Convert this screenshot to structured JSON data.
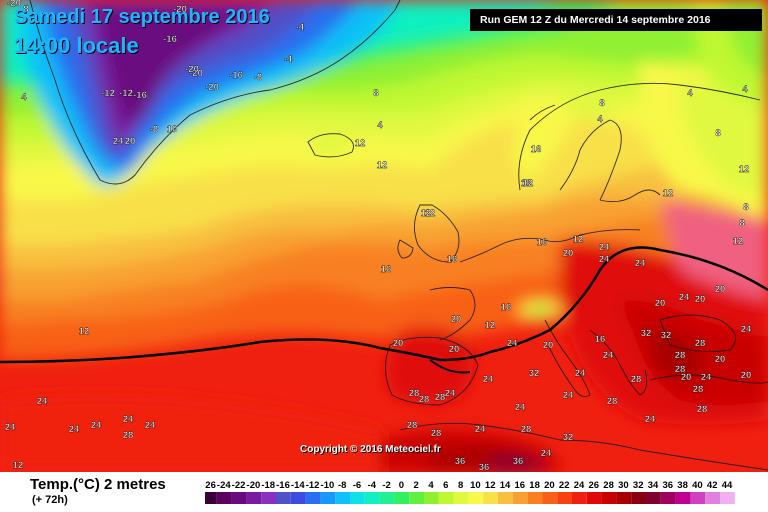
{
  "header": {
    "date_line": "Samedi 17 septembre 2016",
    "time_line": "14:00 locale",
    "run_info": "Run GEM 12 Z du Mercredi 14 septembre 2016"
  },
  "copyright": "Copyright © 2016 Meteociel.fr",
  "legend": {
    "title": "Temp.(°C) 2 metres",
    "subtitle": "(+ 72h)",
    "scale_values": [
      "-26",
      "-24",
      "-22",
      "-20",
      "-18",
      "-16",
      "-14",
      "-12",
      "-10",
      "-8",
      "-6",
      "-4",
      "-2",
      "0",
      "2",
      "4",
      "6",
      "8",
      "10",
      "12",
      "14",
      "16",
      "18",
      "20",
      "22",
      "24",
      "26",
      "28",
      "30",
      "32",
      "34",
      "36",
      "38",
      "40",
      "42",
      "44"
    ],
    "scale_colors": [
      "#3a003a",
      "#5a0060",
      "#6a0a80",
      "#7a1aa0",
      "#8a30c0",
      "#5050c8",
      "#3c4ce0",
      "#2870f0",
      "#1898f8",
      "#10c0f8",
      "#10e0e8",
      "#10f0c0",
      "#20f090",
      "#30f060",
      "#60f040",
      "#90f030",
      "#c0f830",
      "#e0f840",
      "#f8f848",
      "#f8e048",
      "#f8c040",
      "#f8a030",
      "#f88020",
      "#f86018",
      "#f84010",
      "#f02010",
      "#e00808",
      "#c80000",
      "#a80000",
      "#880010",
      "#800030",
      "#a00060",
      "#c00090",
      "#d040c0",
      "#e080e0",
      "#f0b0f0"
    ]
  },
  "map_labels": [
    {
      "text": "-20"
    },
    {
      "text": "-20"
    },
    {
      "text": "-16"
    },
    {
      "text": "-20"
    },
    {
      "text": "-16"
    },
    {
      "text": "-12"
    },
    {
      "text": "-12"
    },
    {
      "text": "-16"
    },
    {
      "text": "-20"
    },
    {
      "text": "-20"
    },
    {
      "text": "-8"
    },
    {
      "text": "-4"
    },
    {
      "text": "-4"
    },
    {
      "text": "-8"
    },
    {
      "text": "4"
    },
    {
      "text": "8"
    },
    {
      "text": "4"
    },
    {
      "text": "24"
    },
    {
      "text": "20"
    },
    {
      "text": "8"
    },
    {
      "text": "10"
    },
    {
      "text": "4"
    },
    {
      "text": "4"
    },
    {
      "text": "8"
    },
    {
      "text": "12"
    },
    {
      "text": "12"
    },
    {
      "text": "16"
    },
    {
      "text": "12"
    },
    {
      "text": "16"
    },
    {
      "text": "16"
    },
    {
      "text": "16"
    },
    {
      "text": "12"
    },
    {
      "text": "16"
    },
    {
      "text": "20"
    },
    {
      "text": "24"
    },
    {
      "text": "24"
    },
    {
      "text": "24"
    },
    {
      "text": "20"
    },
    {
      "text": "24"
    },
    {
      "text": "20"
    },
    {
      "text": "20"
    },
    {
      "text": "12"
    },
    {
      "text": "16"
    },
    {
      "text": "20"
    },
    {
      "text": "20"
    },
    {
      "text": "24"
    },
    {
      "text": "20"
    },
    {
      "text": "16"
    },
    {
      "text": "28"
    },
    {
      "text": "32"
    },
    {
      "text": "28"
    },
    {
      "text": "24"
    },
    {
      "text": "20"
    },
    {
      "text": "24"
    },
    {
      "text": "20"
    },
    {
      "text": "24"
    },
    {
      "text": "28"
    },
    {
      "text": "28"
    },
    {
      "text": "24"
    },
    {
      "text": "24"
    },
    {
      "text": "32"
    },
    {
      "text": "24"
    },
    {
      "text": "28"
    },
    {
      "text": "24"
    },
    {
      "text": "20"
    },
    {
      "text": "24"
    },
    {
      "text": "28"
    },
    {
      "text": "28"
    },
    {
      "text": "24"
    },
    {
      "text": "28"
    },
    {
      "text": "28"
    },
    {
      "text": "28"
    },
    {
      "text": "24"
    },
    {
      "text": "28"
    },
    {
      "text": "28"
    },
    {
      "text": "36"
    },
    {
      "text": "32"
    },
    {
      "text": "36"
    },
    {
      "text": "36"
    },
    {
      "text": "24"
    },
    {
      "text": "24"
    },
    {
      "text": "24"
    },
    {
      "text": "24"
    },
    {
      "text": "24"
    },
    {
      "text": "24"
    },
    {
      "text": "24"
    },
    {
      "text": "28"
    },
    {
      "text": "12"
    },
    {
      "text": "12"
    },
    {
      "text": "12"
    },
    {
      "text": "8"
    },
    {
      "text": "8"
    },
    {
      "text": "4"
    },
    {
      "text": "8"
    },
    {
      "text": "12"
    },
    {
      "text": "12"
    },
    {
      "text": "12"
    },
    {
      "text": "12"
    },
    {
      "text": "20"
    },
    {
      "text": "28"
    },
    {
      "text": "32"
    }
  ]
}
